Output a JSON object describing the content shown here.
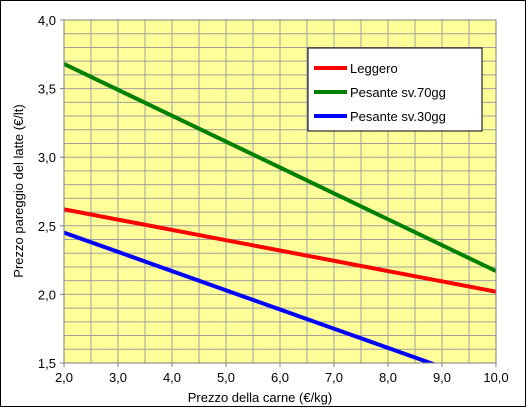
{
  "chart_data": {
    "type": "line",
    "title": "",
    "xlabel": "Prezzo della carne (€/kg)",
    "ylabel": "Prezzo pareggio del latte (€/lt)",
    "xlim": [
      2.0,
      10.0
    ],
    "ylim": [
      1.5,
      4.0
    ],
    "x_ticks": [
      "2,0",
      "3,0",
      "4,0",
      "5,0",
      "6,0",
      "7,0",
      "8,0",
      "9,0",
      "10,0"
    ],
    "y_ticks": [
      "1,5",
      "2,0",
      "2,5",
      "3,0",
      "3,5",
      "4,0"
    ],
    "x_tick_values": [
      2,
      3,
      4,
      5,
      6,
      7,
      8,
      9,
      10
    ],
    "y_tick_values": [
      1.5,
      2.0,
      2.5,
      3.0,
      3.5,
      4.0
    ],
    "minor_x_step": 0.5,
    "minor_y_step": 0.1,
    "grid": true,
    "legend_position": "top-right",
    "plot_background": "#ffff99",
    "grid_color": "#a0a0a0",
    "series": [
      {
        "name": "Leggero",
        "color": "#ff0000",
        "x": [
          2.0,
          10.0
        ],
        "y": [
          2.62,
          2.02
        ]
      },
      {
        "name": "Pesante sv.70gg",
        "color": "#008000",
        "x": [
          2.0,
          10.0
        ],
        "y": [
          3.68,
          2.17
        ]
      },
      {
        "name": "Pesante sv.30gg",
        "color": "#0000ff",
        "x": [
          2.0,
          10.0
        ],
        "y": [
          2.45,
          1.33
        ]
      }
    ]
  }
}
